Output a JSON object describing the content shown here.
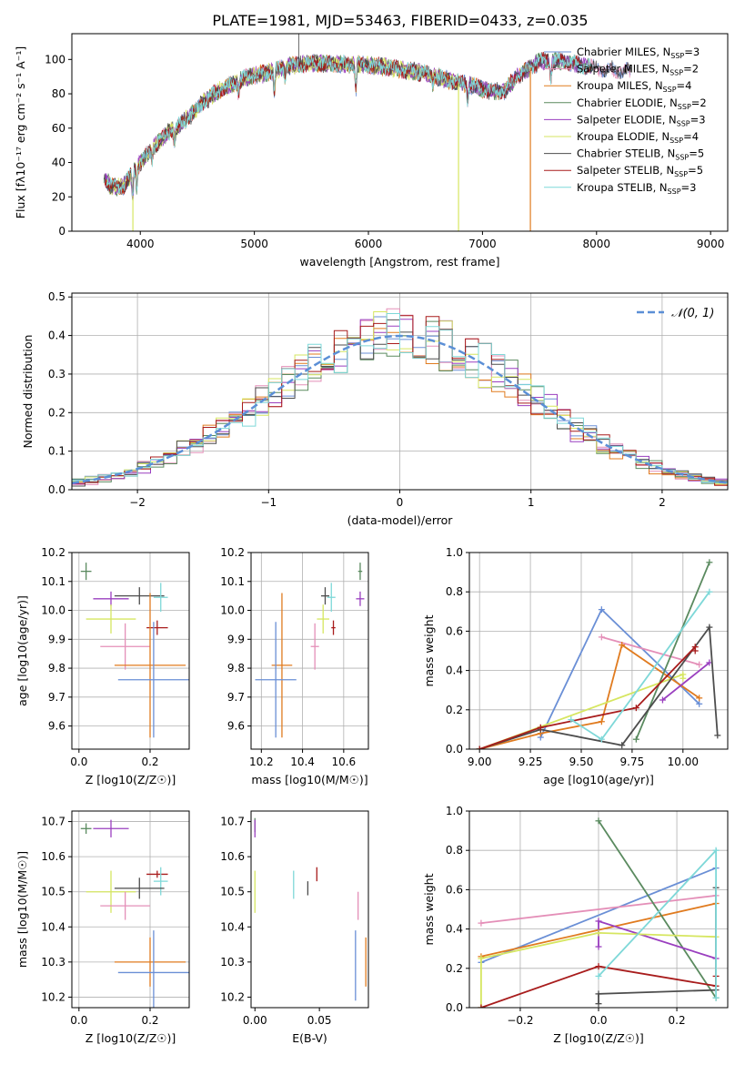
{
  "figure_title": "PLATE=1981, MJD=53463, FIBERID=0433, z=0.035",
  "colors": {
    "chabrier_miles": "#6a8fd6",
    "salpeter_miles": "#e48fb8",
    "kroupa_miles": "#e07b1f",
    "chabrier_elodie": "#5a8a5f",
    "salpeter_elodie": "#9a3fbf",
    "kroupa_elodie": "#d6e660",
    "chabrier_stelib": "#4d4d4d",
    "salpeter_stelib": "#a81c1c",
    "kroupa_stelib": "#7ed8d8"
  },
  "chart_data": [
    {
      "id": "spectrum",
      "type": "line",
      "title": "PLATE=1981, MJD=53463, FIBERID=0433, z=0.035",
      "xlabel": "wavelength [Angstrom, rest frame]",
      "ylabel": "Flux [fλ10⁻¹⁷ erg cm⁻² s⁻¹ A⁻¹]",
      "xlim": [
        3400,
        9150
      ],
      "ylim": [
        0,
        115
      ],
      "xticks": [
        4000,
        5000,
        6000,
        7000,
        8000,
        9000
      ],
      "yticks": [
        0,
        20,
        40,
        60,
        80,
        100
      ],
      "grid": false,
      "legend_position": "top-right",
      "legend": [
        {
          "label": "Chabrier MILES, N",
          "sub": "SSP",
          "suffix": "=3",
          "color_key": "chabrier_miles"
        },
        {
          "label": "Salpeter MILES, N",
          "sub": "SSP",
          "suffix": "=2",
          "color_key": "salpeter_miles"
        },
        {
          "label": "Kroupa MILES, N",
          "sub": "SSP",
          "suffix": "=4",
          "color_key": "kroupa_miles"
        },
        {
          "label": "Chabrier ELODIE, N",
          "sub": "SSP",
          "suffix": "=2",
          "color_key": "chabrier_elodie"
        },
        {
          "label": "Salpeter ELODIE, N",
          "sub": "SSP",
          "suffix": "=3",
          "color_key": "salpeter_elodie"
        },
        {
          "label": "Kroupa ELODIE, N",
          "sub": "SSP",
          "suffix": "=4",
          "color_key": "kroupa_elodie"
        },
        {
          "label": "Chabrier STELIB, N",
          "sub": "SSP",
          "suffix": "=5",
          "color_key": "chabrier_stelib"
        },
        {
          "label": "Salpeter STELIB, N",
          "sub": "SSP",
          "suffix": "=5",
          "color_key": "salpeter_stelib"
        },
        {
          "label": "Kroupa STELIB, N",
          "sub": "SSP",
          "suffix": "=3",
          "color_key": "kroupa_stelib"
        }
      ],
      "continuum": [
        [
          3680,
          30
        ],
        [
          3750,
          26
        ],
        [
          3850,
          26
        ],
        [
          3950,
          36
        ],
        [
          4050,
          44
        ],
        [
          4150,
          51
        ],
        [
          4250,
          58
        ],
        [
          4350,
          62
        ],
        [
          4450,
          68
        ],
        [
          4550,
          75
        ],
        [
          4650,
          80
        ],
        [
          4750,
          84
        ],
        [
          4850,
          87
        ],
        [
          4950,
          90
        ],
        [
          5100,
          92
        ],
        [
          5300,
          96
        ],
        [
          5500,
          98
        ],
        [
          5700,
          97
        ],
        [
          5900,
          97
        ],
        [
          6100,
          96
        ],
        [
          6300,
          94
        ],
        [
          6500,
          92
        ],
        [
          6700,
          88
        ],
        [
          6900,
          85
        ],
        [
          7100,
          81
        ],
        [
          7200,
          82
        ],
        [
          7300,
          90
        ],
        [
          7500,
          99
        ],
        [
          7700,
          99
        ],
        [
          7900,
          96
        ],
        [
          8100,
          94
        ],
        [
          8300,
          93
        ]
      ],
      "absorption_lines": [
        {
          "x": 3934,
          "depth": 14
        },
        {
          "x": 3969,
          "depth": 12
        },
        {
          "x": 4102,
          "depth": 6
        },
        {
          "x": 4300,
          "depth": 8
        },
        {
          "x": 4861,
          "depth": 6
        },
        {
          "x": 5175,
          "depth": 12
        },
        {
          "x": 5270,
          "depth": 5
        },
        {
          "x": 5890,
          "depth": 14
        },
        {
          "x": 6563,
          "depth": 5
        },
        {
          "x": 6870,
          "depth": 8
        },
        {
          "x": 7600,
          "depth": 10
        }
      ],
      "dropouts": [
        {
          "x": 3935,
          "color_key": "kroupa_elodie",
          "to": 0
        },
        {
          "x": 6790,
          "color_key": "kroupa_elodie",
          "to": 0
        },
        {
          "x": 7420,
          "color_key": "kroupa_miles",
          "to": 0
        }
      ]
    },
    {
      "id": "residual-histogram",
      "type": "histogram",
      "xlabel": "(data-model)/error",
      "ylabel": "Normed distribution",
      "xlim": [
        -2.5,
        2.5
      ],
      "ylim": [
        0,
        0.51
      ],
      "xticks": [
        -2,
        -1,
        0,
        1,
        2
      ],
      "yticks": [
        0.0,
        0.1,
        0.2,
        0.3,
        0.4,
        0.5
      ],
      "grid": true,
      "legend_position": "top-right",
      "reference_curve": {
        "label": "𝒩(0, 1)",
        "mean": 0,
        "sigma": 1,
        "style": "dashed",
        "color": "#5b8fd6"
      },
      "bin_width": 0.1
    },
    {
      "id": "age-vs-Z",
      "type": "errorbar",
      "xlabel": "Z [log10(Z/Z☉)]",
      "ylabel": "age  [log10(age/yr)]",
      "xlim": [
        -0.02,
        0.31
      ],
      "ylim": [
        9.52,
        10.2
      ],
      "xticks": [
        0.0,
        0.2
      ],
      "yticks": [
        9.6,
        9.7,
        9.8,
        9.9,
        10.0,
        10.1,
        10.2
      ],
      "grid": true,
      "points": [
        {
          "key": "chabrier_elodie",
          "x": 0.02,
          "xerr": 0.015,
          "y": 10.135,
          "yerr": 0.03
        },
        {
          "key": "salpeter_elodie",
          "x": 0.09,
          "xerr": 0.05,
          "y": 10.04,
          "yerr": 0.025
        },
        {
          "key": "chabrier_stelib",
          "x": 0.17,
          "xerr": 0.07,
          "y": 10.05,
          "yerr": 0.03
        },
        {
          "key": "kroupa_stelib",
          "x": 0.23,
          "xerr": 0.02,
          "y": 10.045,
          "yerr": 0.05
        },
        {
          "key": "kroupa_elodie",
          "x": 0.09,
          "xerr": 0.07,
          "y": 9.97,
          "yerr": 0.05
        },
        {
          "key": "salpeter_stelib",
          "x": 0.22,
          "xerr": 0.03,
          "y": 9.94,
          "yerr": 0.025
        },
        {
          "key": "salpeter_miles",
          "x": 0.13,
          "xerr": 0.07,
          "y": 9.875,
          "yerr": 0.08
        },
        {
          "key": "kroupa_miles",
          "x": 0.2,
          "xerr": 0.1,
          "y": 9.81,
          "yerr": 0.25
        },
        {
          "key": "chabrier_miles",
          "x": 0.21,
          "xerr": 0.1,
          "y": 9.76,
          "yerr": 0.2
        }
      ]
    },
    {
      "id": "age-vs-mass",
      "type": "errorbar",
      "xlabel": "mass [log10(M/M☉)]",
      "ylabel": "",
      "xlim": [
        10.15,
        10.72
      ],
      "ylim": [
        9.52,
        10.2
      ],
      "xticks": [
        10.2,
        10.4,
        10.6
      ],
      "yticks": [
        9.6,
        9.7,
        9.8,
        9.9,
        10.0,
        10.1,
        10.2
      ],
      "grid": true,
      "points": [
        {
          "key": "chabrier_elodie",
          "x": 10.68,
          "xerr": 0.01,
          "y": 10.135,
          "yerr": 0.03
        },
        {
          "key": "salpeter_elodie",
          "x": 10.68,
          "xerr": 0.02,
          "y": 10.04,
          "yerr": 0.025
        },
        {
          "key": "chabrier_stelib",
          "x": 10.51,
          "xerr": 0.02,
          "y": 10.05,
          "yerr": 0.03
        },
        {
          "key": "kroupa_stelib",
          "x": 10.54,
          "xerr": 0.02,
          "y": 10.045,
          "yerr": 0.05
        },
        {
          "key": "kroupa_elodie",
          "x": 10.5,
          "xerr": 0.03,
          "y": 9.97,
          "yerr": 0.05
        },
        {
          "key": "salpeter_stelib",
          "x": 10.55,
          "xerr": 0.01,
          "y": 9.94,
          "yerr": 0.025
        },
        {
          "key": "salpeter_miles",
          "x": 10.46,
          "xerr": 0.02,
          "y": 9.875,
          "yerr": 0.08
        },
        {
          "key": "kroupa_miles",
          "x": 10.3,
          "xerr": 0.05,
          "y": 9.81,
          "yerr": 0.25
        },
        {
          "key": "chabrier_miles",
          "x": 10.27,
          "xerr": 0.1,
          "y": 9.76,
          "yerr": 0.2
        }
      ]
    },
    {
      "id": "massweight-vs-age",
      "type": "line",
      "xlabel": "age  [log10(age/yr)]",
      "ylabel": "mass weight",
      "xlim": [
        8.95,
        10.22
      ],
      "ylim": [
        0,
        1.0
      ],
      "xticks": [
        9.0,
        9.25,
        9.5,
        9.75,
        10.0
      ],
      "yticks": [
        0.0,
        0.2,
        0.4,
        0.6,
        0.8,
        1.0
      ],
      "grid": true,
      "series": [
        {
          "key": "chabrier_miles",
          "points": [
            [
              9.3,
              0.06
            ],
            [
              9.6,
              0.71
            ],
            [
              10.08,
              0.23
            ]
          ]
        },
        {
          "key": "salpeter_miles",
          "points": [
            [
              9.6,
              0.57
            ],
            [
              10.08,
              0.43
            ]
          ]
        },
        {
          "key": "kroupa_miles",
          "points": [
            [
              9.0,
              0.0
            ],
            [
              9.3,
              0.08
            ],
            [
              9.6,
              0.14
            ],
            [
              9.7,
              0.53
            ],
            [
              10.08,
              0.26
            ]
          ]
        },
        {
          "key": "chabrier_elodie",
          "points": [
            [
              9.77,
              0.05
            ],
            [
              10.13,
              0.95
            ]
          ]
        },
        {
          "key": "salpeter_elodie",
          "points": [
            [
              9.9,
              0.25
            ],
            [
              10.13,
              0.44
            ]
          ]
        },
        {
          "key": "kroupa_elodie",
          "points": [
            [
              9.0,
              0.0
            ],
            [
              10.0,
              0.38
            ],
            [
              10.0,
              0.36
            ]
          ]
        },
        {
          "key": "chabrier_stelib",
          "points": [
            [
              9.0,
              0.0
            ],
            [
              9.3,
              0.1
            ],
            [
              9.7,
              0.02
            ],
            [
              10.13,
              0.62
            ],
            [
              10.17,
              0.07
            ]
          ]
        },
        {
          "key": "salpeter_stelib",
          "points": [
            [
              9.0,
              0.0
            ],
            [
              9.3,
              0.11
            ],
            [
              9.77,
              0.21
            ],
            [
              10.06,
              0.52
            ],
            [
              10.06,
              0.5
            ]
          ]
        },
        {
          "key": "kroupa_stelib",
          "points": [
            [
              9.45,
              0.15
            ],
            [
              9.6,
              0.05
            ],
            [
              10.13,
              0.8
            ]
          ]
        }
      ]
    },
    {
      "id": "mass-vs-Z",
      "type": "errorbar",
      "xlabel": "Z [log10(Z/Z☉)]",
      "ylabel": "mass [log10(M/M☉)]",
      "xlim": [
        -0.02,
        0.31
      ],
      "ylim": [
        10.17,
        10.73
      ],
      "xticks": [
        0.0,
        0.2
      ],
      "yticks": [
        10.2,
        10.3,
        10.4,
        10.5,
        10.6,
        10.7
      ],
      "grid": true,
      "points": [
        {
          "key": "chabrier_elodie",
          "x": 0.02,
          "xerr": 0.015,
          "y": 10.68,
          "yerr": 0.015
        },
        {
          "key": "salpeter_elodie",
          "x": 0.09,
          "xerr": 0.05,
          "y": 10.68,
          "yerr": 0.025
        },
        {
          "key": "salpeter_stelib",
          "x": 0.22,
          "xerr": 0.03,
          "y": 10.55,
          "yerr": 0.01
        },
        {
          "key": "kroupa_stelib",
          "x": 0.23,
          "xerr": 0.02,
          "y": 10.53,
          "yerr": 0.04
        },
        {
          "key": "chabrier_stelib",
          "x": 0.17,
          "xerr": 0.07,
          "y": 10.51,
          "yerr": 0.03
        },
        {
          "key": "kroupa_elodie",
          "x": 0.09,
          "xerr": 0.07,
          "y": 10.5,
          "yerr": 0.06
        },
        {
          "key": "salpeter_miles",
          "x": 0.13,
          "xerr": 0.07,
          "y": 10.46,
          "yerr": 0.04
        },
        {
          "key": "kroupa_miles",
          "x": 0.2,
          "xerr": 0.1,
          "y": 10.3,
          "yerr": 0.07
        },
        {
          "key": "chabrier_miles",
          "x": 0.21,
          "xerr": 0.1,
          "y": 10.27,
          "yerr": 0.12
        }
      ]
    },
    {
      "id": "mass-vs-ebv",
      "type": "errorbar",
      "xlabel": "E(B-V)",
      "ylabel": "",
      "xlim": [
        -0.003,
        0.088
      ],
      "ylim": [
        10.17,
        10.73
      ],
      "xticks": [
        0.0,
        0.05
      ],
      "yticks": [
        10.2,
        10.3,
        10.4,
        10.5,
        10.6,
        10.7
      ],
      "grid": false,
      "points": [
        {
          "key": "chabrier_elodie",
          "x": 0.0,
          "xerr": 0,
          "y": 10.69,
          "yerr": 0.02
        },
        {
          "key": "salpeter_elodie",
          "x": 0.0,
          "xerr": 0,
          "y": 10.68,
          "yerr": 0.025
        },
        {
          "key": "kroupa_elodie",
          "x": 0.0,
          "xerr": 0,
          "y": 10.5,
          "yerr": 0.06
        },
        {
          "key": "kroupa_stelib",
          "x": 0.03,
          "xerr": 0,
          "y": 10.52,
          "yerr": 0.04
        },
        {
          "key": "chabrier_stelib",
          "x": 0.041,
          "xerr": 0,
          "y": 10.51,
          "yerr": 0.02
        },
        {
          "key": "salpeter_stelib",
          "x": 0.048,
          "xerr": 0,
          "y": 10.55,
          "yerr": 0.02
        },
        {
          "key": "salpeter_miles",
          "x": 0.08,
          "xerr": 0,
          "y": 10.46,
          "yerr": 0.04
        },
        {
          "key": "kroupa_miles",
          "x": 0.086,
          "xerr": 0,
          "y": 10.3,
          "yerr": 0.07
        },
        {
          "key": "chabrier_miles",
          "x": 0.078,
          "xerr": 0,
          "y": 10.29,
          "yerr": 0.1
        }
      ]
    },
    {
      "id": "massweight-vs-Z",
      "type": "line",
      "xlabel": "Z [log10(Z/Z☉)]",
      "ylabel": "mass weight",
      "xlim": [
        -0.33,
        0.33
      ],
      "ylim": [
        0,
        1.0
      ],
      "xticks": [
        -0.2,
        0.0,
        0.2
      ],
      "yticks": [
        0.0,
        0.2,
        0.4,
        0.6,
        0.8,
        1.0
      ],
      "grid": true,
      "series": [
        {
          "key": "chabrier_miles",
          "points": [
            [
              -0.3,
              0.23
            ],
            [
              0.3,
              0.71
            ]
          ]
        },
        {
          "key": "salpeter_miles",
          "points": [
            [
              -0.3,
              0.43
            ],
            [
              0.3,
              0.57
            ]
          ]
        },
        {
          "key": "kroupa_miles",
          "points": [
            [
              -0.3,
              0.26
            ],
            [
              0.3,
              0.53
            ]
          ]
        },
        {
          "key": "chabrier_elodie",
          "points": [
            [
              0.0,
              0.95
            ],
            [
              0.3,
              0.05
            ]
          ]
        },
        {
          "key": "salpeter_elodie",
          "points": [
            [
              0.0,
              0.31
            ],
            [
              0.0,
              0.44
            ],
            [
              0.3,
              0.25
            ]
          ]
        },
        {
          "key": "kroupa_elodie",
          "points": [
            [
              -0.3,
              0.0
            ],
            [
              -0.3,
              0.25
            ],
            [
              0.0,
              0.38
            ],
            [
              0.3,
              0.36
            ]
          ]
        },
        {
          "key": "chabrier_stelib",
          "points": [
            [
              0.0,
              0.02
            ],
            [
              0.0,
              0.07
            ],
            [
              0.3,
              0.09
            ],
            [
              0.3,
              0.61
            ]
          ]
        },
        {
          "key": "salpeter_stelib",
          "points": [
            [
              -0.3,
              0.0
            ],
            [
              0.0,
              0.21
            ],
            [
              0.3,
              0.11
            ],
            [
              0.3,
              0.16
            ]
          ]
        },
        {
          "key": "kroupa_stelib",
          "points": [
            [
              0.0,
              0.16
            ],
            [
              0.3,
              0.8
            ],
            [
              0.3,
              0.05
            ]
          ]
        }
      ]
    }
  ]
}
